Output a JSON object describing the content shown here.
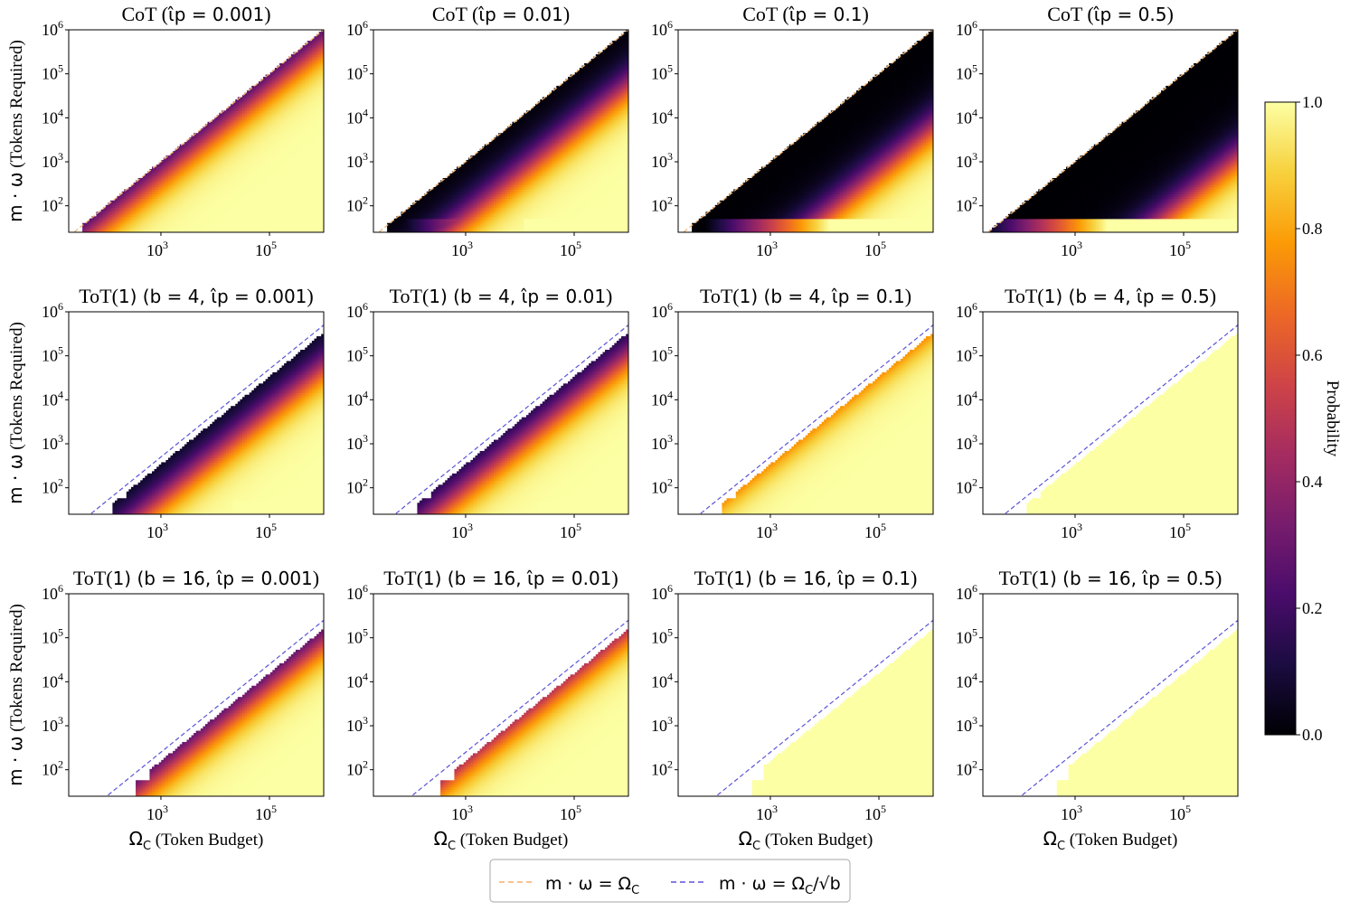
{
  "chart_data": {
    "type": "heatmap",
    "x_axis_scale": "log",
    "y_axis_scale": "log",
    "xlim": [
      20,
      1000000
    ],
    "ylim": [
      25,
      1000000
    ],
    "x_ticks": [
      {
        "value": 1000,
        "base": "10",
        "exp": "3"
      },
      {
        "value": 100000,
        "base": "10",
        "exp": "5"
      }
    ],
    "y_ticks": [
      {
        "value": 100,
        "base": "10",
        "exp": "2"
      },
      {
        "value": 1000,
        "base": "10",
        "exp": "3"
      },
      {
        "value": 10000,
        "base": "10",
        "exp": "4"
      },
      {
        "value": 100000,
        "base": "10",
        "exp": "5"
      },
      {
        "value": 1000000,
        "base": "10",
        "exp": "6"
      }
    ],
    "xlabel": {
      "symbol": "Ω",
      "sub": "C",
      "text": " (Token Budget)"
    },
    "ylabel": {
      "symbol": "m · ω",
      "text": " (Tokens Required)"
    },
    "panels": [
      {
        "title": "CoT (ι̂p = 0.001)",
        "method": "CoT",
        "b": 1,
        "ip": 0.001,
        "reference": "cot"
      },
      {
        "title": "CoT (ι̂p = 0.01)",
        "method": "CoT",
        "b": 1,
        "ip": 0.01,
        "reference": "cot"
      },
      {
        "title": "CoT (ι̂p = 0.1)",
        "method": "CoT",
        "b": 1,
        "ip": 0.1,
        "reference": "cot"
      },
      {
        "title": "CoT (ι̂p = 0.5)",
        "method": "CoT",
        "b": 1,
        "ip": 0.5,
        "reference": "cot"
      },
      {
        "title": "ToT(1) (b = 4, ι̂p = 0.001)",
        "method": "ToT(1)",
        "b": 4,
        "ip": 0.001,
        "reference": "tot"
      },
      {
        "title": "ToT(1) (b = 4, ι̂p = 0.01)",
        "method": "ToT(1)",
        "b": 4,
        "ip": 0.01,
        "reference": "tot"
      },
      {
        "title": "ToT(1) (b = 4, ι̂p = 0.1)",
        "method": "ToT(1)",
        "b": 4,
        "ip": 0.1,
        "reference": "tot"
      },
      {
        "title": "ToT(1) (b = 4, ι̂p = 0.5)",
        "method": "ToT(1)",
        "b": 4,
        "ip": 0.5,
        "reference": "tot"
      },
      {
        "title": "ToT(1) (b = 16, ι̂p = 0.001)",
        "method": "ToT(1)",
        "b": 16,
        "ip": 0.001,
        "reference": "tot"
      },
      {
        "title": "ToT(1) (b = 16, ι̂p = 0.01)",
        "method": "ToT(1)",
        "b": 16,
        "ip": 0.01,
        "reference": "tot"
      },
      {
        "title": "ToT(1) (b = 16, ι̂p = 0.1)",
        "method": "ToT(1)",
        "b": 16,
        "ip": 0.1,
        "reference": "tot"
      },
      {
        "title": "ToT(1) (b = 16, ι̂p = 0.5)",
        "method": "ToT(1)",
        "b": 16,
        "ip": 0.5,
        "reference": "tot"
      }
    ],
    "colorbar": {
      "label": "Probability",
      "colormap": "inferno",
      "range": [
        0,
        1
      ],
      "ticks": [
        "0.0",
        "0.2",
        "0.4",
        "0.6",
        "0.8",
        "1.0"
      ],
      "tick_values": [
        0,
        0.2,
        0.4,
        0.6,
        0.8,
        1.0
      ],
      "stops": [
        "#000004",
        "#1b0c41",
        "#4a0c6b",
        "#781c6d",
        "#a52c60",
        "#cf4446",
        "#ed6925",
        "#fb9b06",
        "#f7d13d",
        "#fcffa4"
      ]
    },
    "legend": {
      "position": "bottom-center",
      "entries": [
        {
          "label": "m · ω = Ω_C",
          "text": "m · ω = Ω",
          "sub": "C",
          "suffix": "",
          "color": "#f4b168",
          "style": "dashed"
        },
        {
          "label": "m · ω = Ω_C/√b",
          "text": "m · ω = Ω",
          "sub": "C",
          "suffix": "/√b",
          "color": "#5a54d8",
          "style": "dashed"
        }
      ]
    }
  }
}
